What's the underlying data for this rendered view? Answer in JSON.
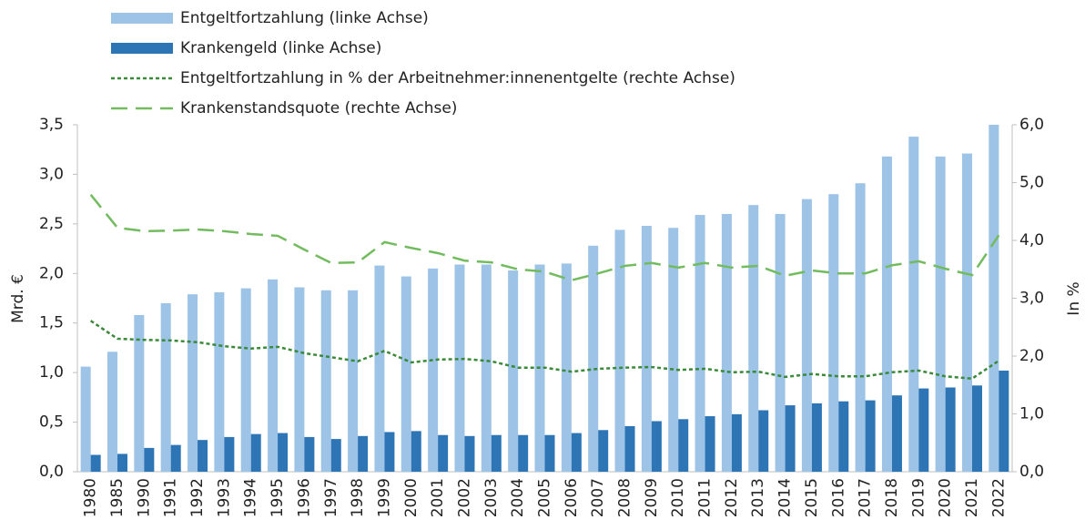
{
  "chart_data": {
    "type": "bar",
    "categories": [
      "1980",
      "1985",
      "1990",
      "1991",
      "1992",
      "1993",
      "1994",
      "1995",
      "1996",
      "1997",
      "1998",
      "1999",
      "2000",
      "2001",
      "2002",
      "2003",
      "2004",
      "2005",
      "2006",
      "2007",
      "2008",
      "2009",
      "2010",
      "2011",
      "2012",
      "2013",
      "2014",
      "2015",
      "2016",
      "2017",
      "2018",
      "2019",
      "2020",
      "2021",
      "2022"
    ],
    "series": [
      {
        "name": "Entgeltfortzahlung (linke Achse)",
        "type": "bar",
        "color": "#9dc3e6",
        "values": [
          1.06,
          1.21,
          1.58,
          1.7,
          1.79,
          1.81,
          1.85,
          1.94,
          1.86,
          1.83,
          1.83,
          2.08,
          1.97,
          2.05,
          2.09,
          2.09,
          2.03,
          2.09,
          2.1,
          2.28,
          2.44,
          2.48,
          2.46,
          2.59,
          2.6,
          2.69,
          2.6,
          2.75,
          2.8,
          2.91,
          3.18,
          3.38,
          3.18,
          3.21,
          3.5
        ]
      },
      {
        "name": "Krankengeld (linke Achse)",
        "type": "bar",
        "color": "#2e75b6",
        "values": [
          0.17,
          0.18,
          0.24,
          0.27,
          0.32,
          0.35,
          0.38,
          0.39,
          0.35,
          0.33,
          0.36,
          0.4,
          0.41,
          0.37,
          0.36,
          0.37,
          0.37,
          0.37,
          0.39,
          0.42,
          0.46,
          0.51,
          0.53,
          0.56,
          0.58,
          0.62,
          0.67,
          0.69,
          0.71,
          0.72,
          0.77,
          0.84,
          0.85,
          0.87,
          1.02
        ]
      },
      {
        "name": "Entgeltfortzahlung in % der Arbeitnehmer:innenentgelte (rechte Achse)",
        "type": "line",
        "style": "dotted",
        "axis": "y2",
        "color": "#3a8a3a",
        "values": [
          2.61,
          2.3,
          2.28,
          2.27,
          2.24,
          2.17,
          2.13,
          2.16,
          2.05,
          1.98,
          1.91,
          2.09,
          1.89,
          1.94,
          1.95,
          1.91,
          1.8,
          1.8,
          1.73,
          1.78,
          1.8,
          1.81,
          1.76,
          1.78,
          1.72,
          1.73,
          1.64,
          1.69,
          1.65,
          1.65,
          1.72,
          1.75,
          1.65,
          1.61,
          1.92
        ]
      },
      {
        "name": "Krankenstandsquote (rechte Achse)",
        "type": "line",
        "style": "dashed",
        "axis": "y2",
        "color": "#72bb5e",
        "values": [
          4.79,
          4.22,
          4.16,
          4.17,
          4.19,
          4.16,
          4.11,
          4.08,
          3.84,
          3.61,
          3.62,
          3.97,
          3.87,
          3.78,
          3.65,
          3.62,
          3.5,
          3.46,
          3.31,
          3.43,
          3.56,
          3.61,
          3.53,
          3.61,
          3.53,
          3.56,
          3.39,
          3.48,
          3.43,
          3.43,
          3.57,
          3.64,
          3.51,
          3.4,
          4.09
        ]
      }
    ],
    "y_label": "Mrd. €",
    "y2_label": "In %",
    "ylim": [
      0,
      3.5
    ],
    "yticks": [
      {
        "value": 0,
        "label": "0,0"
      },
      {
        "value": 0.5,
        "label": "0,5"
      },
      {
        "value": 1,
        "label": "1,0"
      },
      {
        "value": 1.5,
        "label": "1,5"
      },
      {
        "value": 2,
        "label": "2,0"
      },
      {
        "value": 2.5,
        "label": "2,5"
      },
      {
        "value": 3,
        "label": "3,0"
      },
      {
        "value": 3.5,
        "label": "3,5"
      }
    ],
    "y2lim": [
      0,
      6
    ],
    "y2ticks": [
      {
        "value": 0,
        "label": "0,0"
      },
      {
        "value": 1,
        "label": "1,0"
      },
      {
        "value": 2,
        "label": "2,0"
      },
      {
        "value": 3,
        "label": "3,0"
      },
      {
        "value": 4,
        "label": "4,0"
      },
      {
        "value": 5,
        "label": "5,0"
      },
      {
        "value": 6,
        "label": "6,0"
      }
    ],
    "legend": "top-left",
    "grid": false
  }
}
